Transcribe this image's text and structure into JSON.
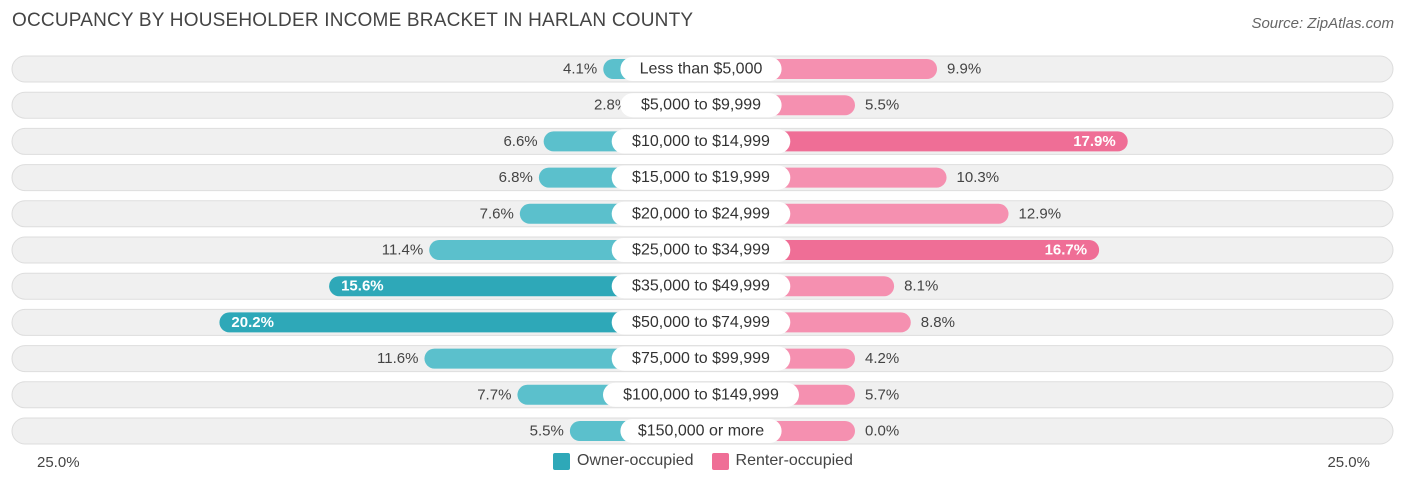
{
  "title": "OCCUPANCY BY HOUSEHOLDER INCOME BRACKET IN HARLAN COUNTY",
  "source": "Source: ZipAtlas.com",
  "axis": {
    "left_label": "25.0%",
    "right_label": "25.0%"
  },
  "legend": {
    "owner_label": "Owner-occupied",
    "renter_label": "Renter-occupied"
  },
  "colors": {
    "owner": "#5bc0cc",
    "owner_strong": "#2ea8b8",
    "renter": "#f590b0",
    "renter_strong": "#ef6e96",
    "track": "#f0f0f0",
    "track_border": "#dddddd"
  },
  "chart_data": {
    "type": "bar",
    "orientation": "horizontal-diverging",
    "title": "OCCUPANCY BY HOUSEHOLDER INCOME BRACKET IN HARLAN COUNTY",
    "xlim": [
      -25,
      25
    ],
    "categories": [
      "Less than $5,000",
      "$5,000 to $9,999",
      "$10,000 to $14,999",
      "$15,000 to $19,999",
      "$20,000 to $24,999",
      "$25,000 to $34,999",
      "$35,000 to $49,999",
      "$50,000 to $74,999",
      "$75,000 to $99,999",
      "$100,000 to $149,999",
      "$150,000 or more"
    ],
    "series": [
      {
        "name": "Owner-occupied",
        "side": "left",
        "values": [
          4.1,
          2.8,
          6.6,
          6.8,
          7.6,
          11.4,
          15.6,
          20.2,
          11.6,
          7.7,
          5.5
        ],
        "labels": [
          "4.1%",
          "2.8%",
          "6.6%",
          "6.8%",
          "7.6%",
          "11.4%",
          "15.6%",
          "20.2%",
          "11.6%",
          "7.7%",
          "5.5%"
        ]
      },
      {
        "name": "Renter-occupied",
        "side": "right",
        "values": [
          9.9,
          5.5,
          17.9,
          10.3,
          12.9,
          16.7,
          8.1,
          8.8,
          4.2,
          5.7,
          0.0
        ],
        "labels": [
          "9.9%",
          "5.5%",
          "17.9%",
          "10.3%",
          "12.9%",
          "16.7%",
          "8.1%",
          "8.8%",
          "4.2%",
          "5.7%",
          "0.0%"
        ]
      }
    ]
  }
}
